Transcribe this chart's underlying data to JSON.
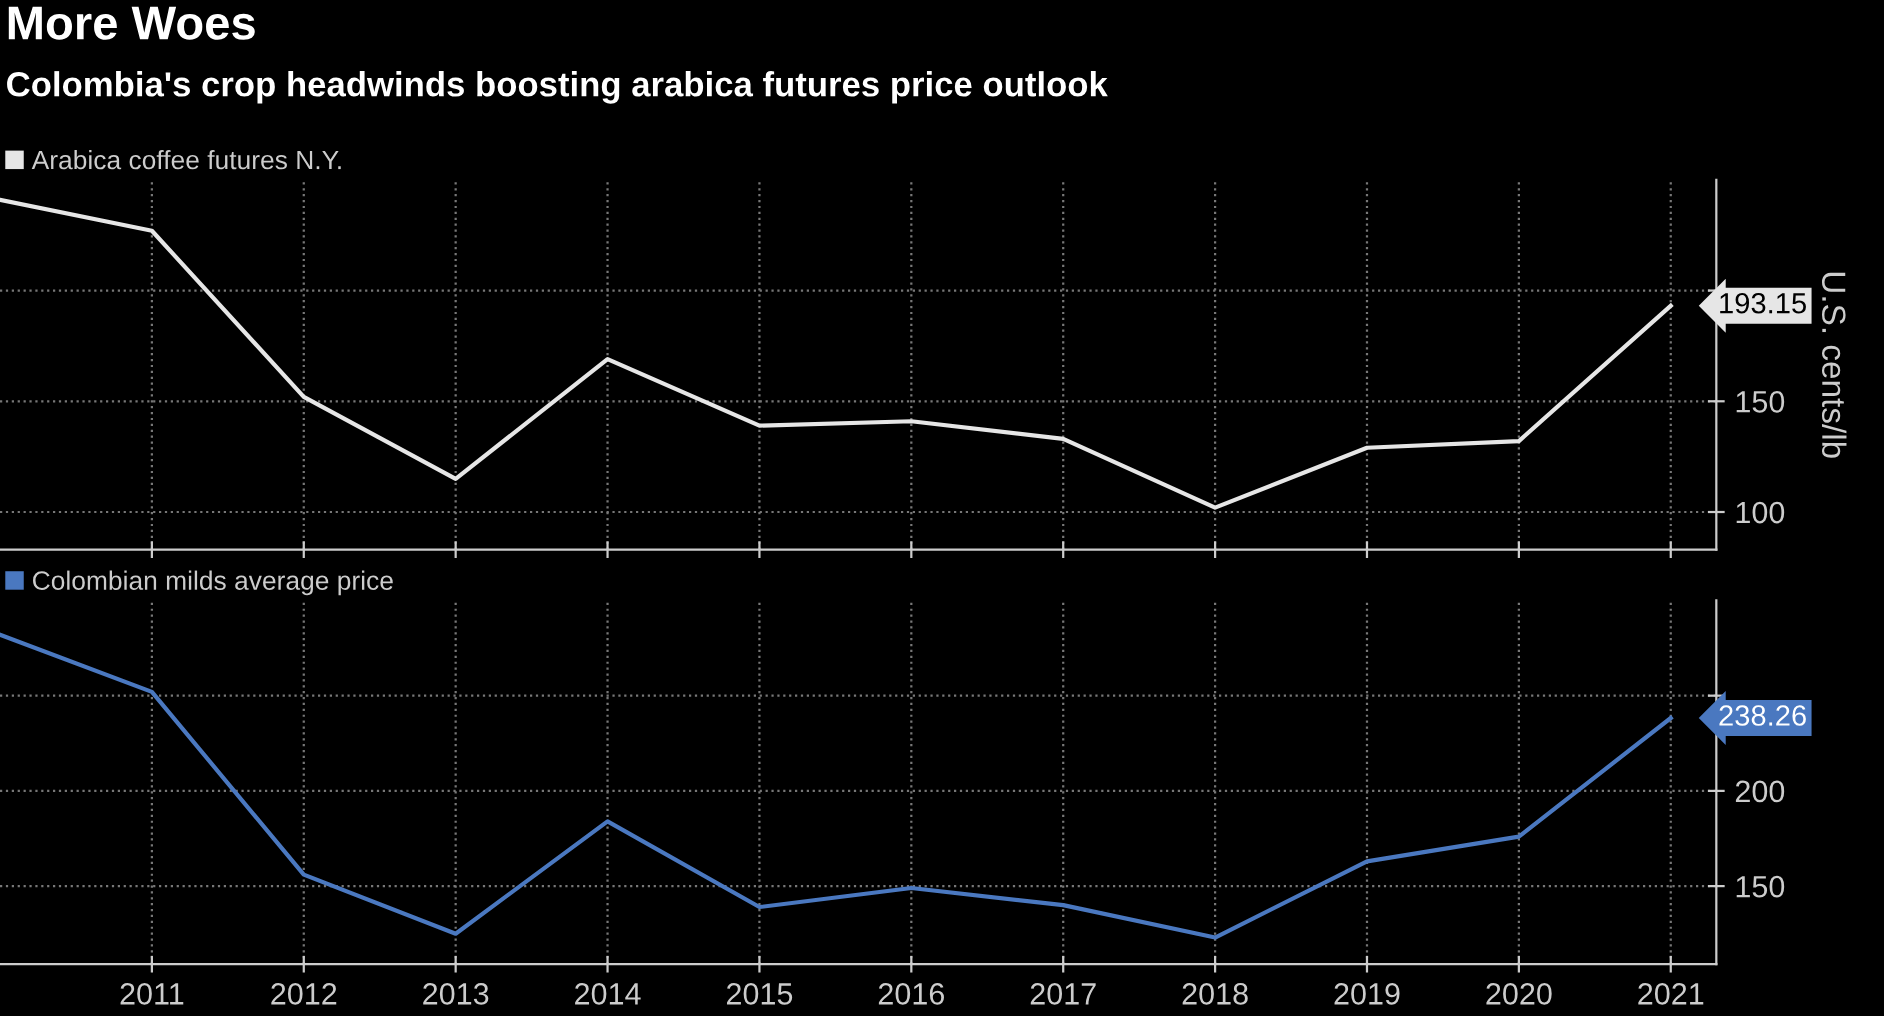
{
  "chart_data": [
    {
      "type": "line",
      "title": "More Woes",
      "subtitle": "Colombia's crop headwinds boosting arabica futures price outlook",
      "ylabel": "U.S. cents/lb",
      "x": [
        2010,
        2011,
        2012,
        2013,
        2014,
        2015,
        2016,
        2017,
        2018,
        2019,
        2020,
        2021
      ],
      "series": [
        {
          "name": "Arabica coffee futures N.Y.",
          "color": "#e6e6e6",
          "values": [
            241,
            227,
            152,
            115,
            169,
            139,
            141,
            133,
            102,
            129,
            132,
            193.15
          ]
        }
      ],
      "xlim": [
        2010,
        2021.3
      ],
      "xticks": [
        2011,
        2012,
        2013,
        2014,
        2015,
        2016,
        2017,
        2018,
        2019,
        2020,
        2021
      ],
      "ylim": [
        83,
        250
      ],
      "yticks": [
        100,
        150,
        {
          "value": 200,
          "label": null
        }
      ],
      "tick_labels": "y",
      "grid": true,
      "legend": "top left",
      "annotations": [
        {
          "text": "193.15",
          "x": 2021,
          "y": 193.15
        }
      ]
    },
    {
      "type": "line",
      "x": [
        2010,
        2011,
        2012,
        2013,
        2014,
        2015,
        2016,
        2017,
        2018,
        2019,
        2020,
        2021
      ],
      "series": [
        {
          "name": "Colombian milds average price",
          "color": "#4a78c0",
          "values": [
            282,
            252,
            156,
            125,
            184,
            139,
            149,
            140,
            123,
            163,
            176,
            238.26
          ]
        }
      ],
      "xlim": [
        2010,
        2021.3
      ],
      "xticks": [
        2011,
        2012,
        2013,
        2014,
        2015,
        2016,
        2017,
        2018,
        2019,
        2020,
        2021
      ],
      "ylim": [
        109,
        300
      ],
      "yticks": [
        150,
        200,
        {
          "value": 250,
          "label": null
        }
      ],
      "grid": true,
      "legend": "top left",
      "annotations": [
        {
          "text": "238.26",
          "x": 2021,
          "y": 238.26
        }
      ]
    }
  ]
}
